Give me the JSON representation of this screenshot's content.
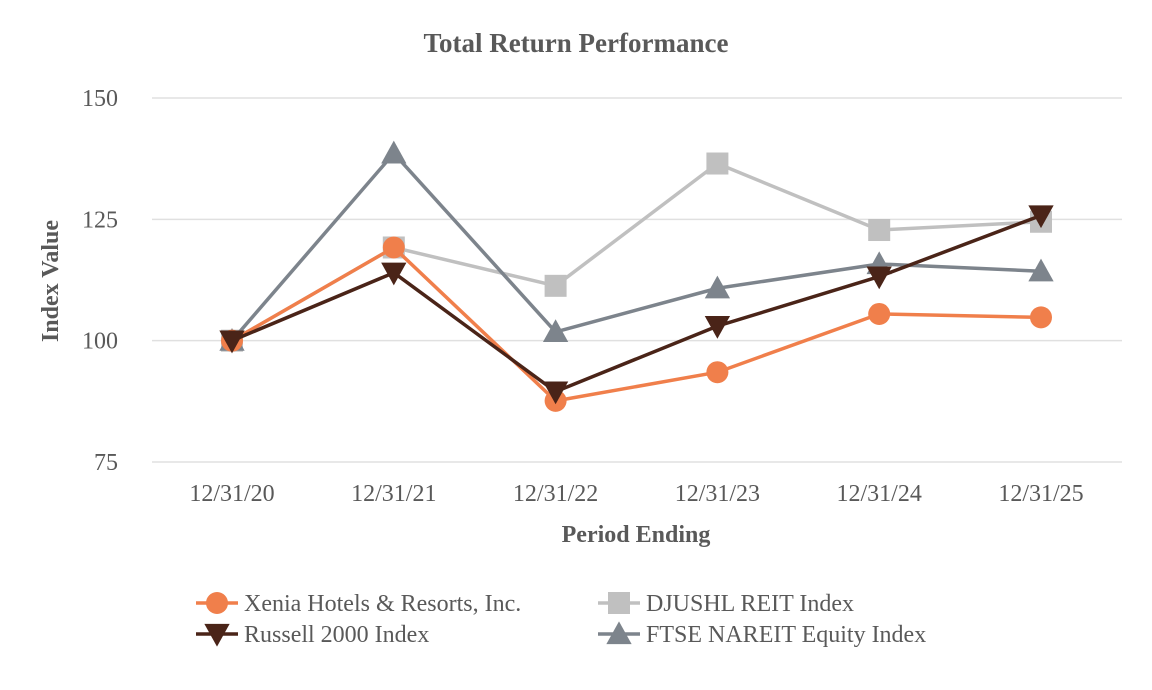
{
  "chart_data": {
    "type": "line",
    "title": "Total Return Performance",
    "xlabel": "Period Ending",
    "ylabel": "Index Value",
    "categories": [
      "12/31/20",
      "12/31/21",
      "12/31/22",
      "12/31/23",
      "12/31/24",
      "12/31/25"
    ],
    "ylim": [
      75,
      150
    ],
    "yticks": [
      75,
      100,
      125,
      150
    ],
    "grid": true,
    "legend_position": "bottom",
    "series": [
      {
        "name": "Xenia Hotels & Resorts, Inc.",
        "values": [
          100,
          119.2,
          87.6,
          93.5,
          105.5,
          104.8
        ],
        "color": "#f07f4b",
        "marker": "circle"
      },
      {
        "name": "DJUSHL REIT Index",
        "values": [
          100,
          119.2,
          111.3,
          136.5,
          122.8,
          124.5
        ],
        "color": "#c0c0c0",
        "marker": "square"
      },
      {
        "name": "Russell 2000 Index",
        "values": [
          100,
          114.0,
          89.5,
          103.0,
          113.2,
          125.8
        ],
        "color": "#4a2418",
        "marker": "triangle-down"
      },
      {
        "name": "FTSE NAREIT Equity Index",
        "values": [
          100,
          138.6,
          101.8,
          110.8,
          115.8,
          114.3
        ],
        "color": "#7d848c",
        "marker": "triangle-up"
      }
    ]
  }
}
